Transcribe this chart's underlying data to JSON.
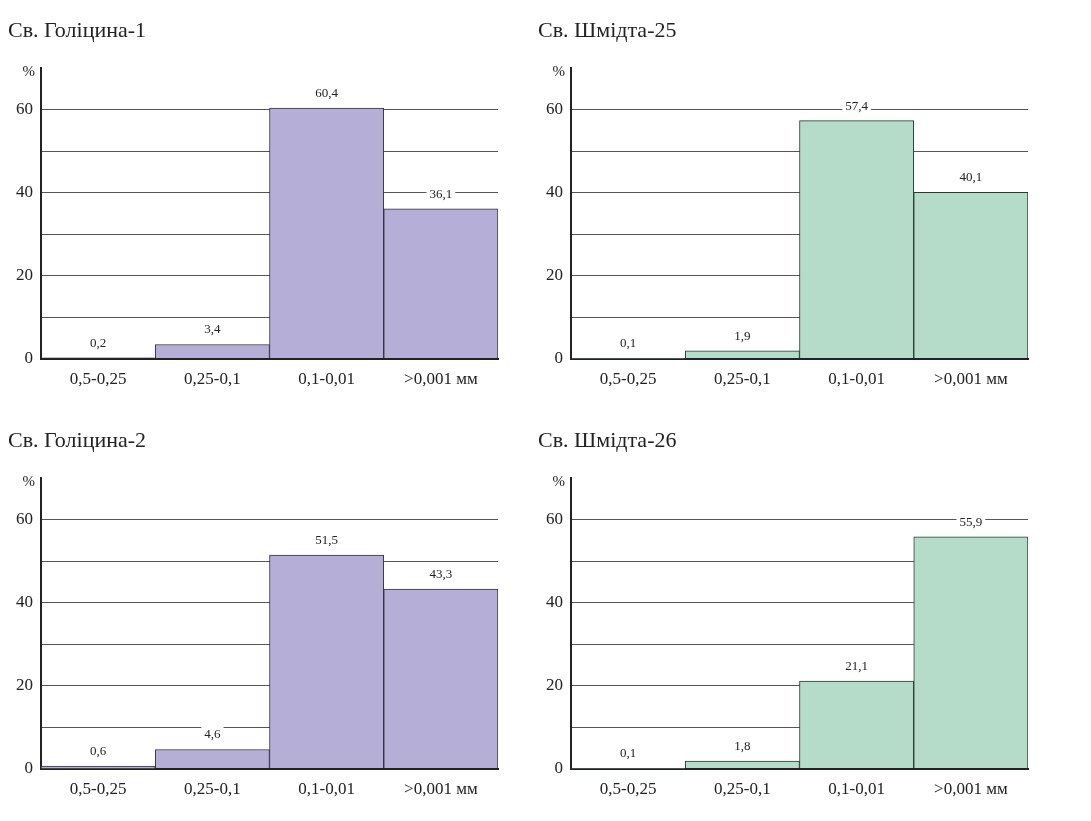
{
  "chart_data": [
    {
      "type": "bar",
      "title": "Св. Голіцина-1",
      "ylabel": "%",
      "categories": [
        "0,5-0,25",
        "0,25-0,1",
        "0,1-0,01",
        ">0,001 мм"
      ],
      "values": [
        0.2,
        3.4,
        60.4,
        36.1
      ],
      "value_labels": [
        "0,2",
        "3,4",
        "60,4",
        "36,1"
      ],
      "color": "#b5aed6",
      "ylim": [
        0,
        70
      ],
      "yticks": [
        0,
        {
          "value": 10,
          "label": null
        },
        20,
        {
          "value": 30,
          "label": null
        },
        40,
        {
          "value": 50,
          "label": null
        },
        60
      ],
      "grid": "y"
    },
    {
      "type": "bar",
      "title": "Св. Шмідта-25",
      "ylabel": "%",
      "categories": [
        "0,5-0,25",
        "0,25-0,1",
        "0,1-0,01",
        ">0,001 мм"
      ],
      "values": [
        0.1,
        1.9,
        57.4,
        40.1
      ],
      "value_labels": [
        "0,1",
        "1,9",
        "57,4",
        "40,1"
      ],
      "color": "#b5dcc8",
      "ylim": [
        0,
        70
      ],
      "yticks": [
        0,
        {
          "value": 10,
          "label": null
        },
        20,
        {
          "value": 30,
          "label": null
        },
        40,
        {
          "value": 50,
          "label": null
        },
        60
      ],
      "grid": "y"
    },
    {
      "type": "bar",
      "title": "Св. Голіцина-2",
      "ylabel": "%",
      "categories": [
        "0,5-0,25",
        "0,25-0,1",
        "0,1-0,01",
        ">0,001 мм"
      ],
      "values": [
        0.6,
        4.6,
        51.5,
        43.3
      ],
      "value_labels": [
        "0,6",
        "4,6",
        "51,5",
        "43,3"
      ],
      "color": "#b5aed6",
      "ylim": [
        0,
        70
      ],
      "yticks": [
        0,
        {
          "value": 10,
          "label": null
        },
        20,
        {
          "value": 30,
          "label": null
        },
        40,
        {
          "value": 50,
          "label": null
        },
        60
      ],
      "grid": "y"
    },
    {
      "type": "bar",
      "title": "Св. Шмідта-26",
      "ylabel": "%",
      "categories": [
        "0,5-0,25",
        "0,25-0,1",
        "0,1-0,01",
        ">0,001 мм"
      ],
      "values": [
        0.1,
        1.8,
        21.1,
        55.9
      ],
      "value_labels": [
        "0,1",
        "1,8",
        "21,1",
        "55,9"
      ],
      "color": "#b5dcc8",
      "ylim": [
        0,
        70
      ],
      "yticks": [
        0,
        {
          "value": 10,
          "label": null
        },
        20,
        {
          "value": 30,
          "label": null
        },
        40,
        {
          "value": 50,
          "label": null
        },
        60
      ],
      "grid": "y"
    }
  ]
}
